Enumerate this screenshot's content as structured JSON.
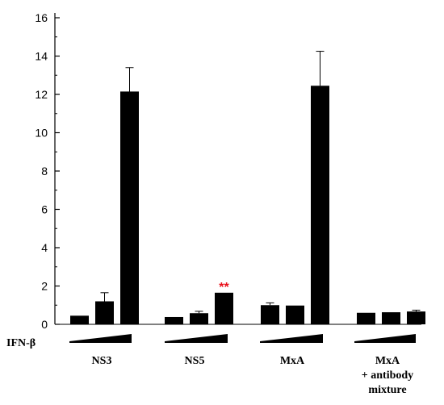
{
  "chart_data": {
    "type": "bar",
    "y_axis": {
      "ylim": [
        0,
        16
      ],
      "ticks": [
        0,
        2,
        4,
        6,
        8,
        10,
        12,
        14,
        16
      ],
      "tick_labels": [
        "0",
        "2",
        "4",
        "6",
        "8",
        "10",
        "12",
        "14",
        "16"
      ],
      "ylabel": ""
    },
    "treatment_label": "IFN-β",
    "groups": [
      {
        "label_lines": [
          "NS3"
        ],
        "values": [
          0.45,
          1.2,
          12.15
        ],
        "errors": [
          0.0,
          0.45,
          1.25
        ],
        "annotation": ""
      },
      {
        "label_lines": [
          "NS5"
        ],
        "values": [
          0.38,
          0.58,
          1.65
        ],
        "errors": [
          0.0,
          0.1,
          0.0
        ],
        "annotation": "**"
      },
      {
        "label_lines": [
          "MxA"
        ],
        "values": [
          1.0,
          0.98,
          12.45
        ],
        "errors": [
          0.12,
          0.0,
          1.8
        ],
        "annotation": ""
      },
      {
        "label_lines": [
          "MxA",
          "+ antibody",
          "mixture"
        ],
        "values": [
          0.6,
          0.63,
          0.67
        ],
        "errors": [
          0.0,
          0.0,
          0.07
        ],
        "annotation": ""
      }
    ],
    "colors": {
      "bar": "#000000",
      "annotation": "#e8101a",
      "axis": "#000000"
    },
    "grid": false,
    "legend": "none"
  }
}
